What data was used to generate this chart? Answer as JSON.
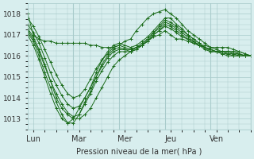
{
  "bg_color": "#d8eeee",
  "grid_color": "#aacccc",
  "line_color": "#1a6b1a",
  "marker_color": "#1a6b1a",
  "xlabel": "Pression niveau de la mer( hPa )",
  "ylim": [
    1012.5,
    1018.5
  ],
  "yticks": [
    1013,
    1014,
    1015,
    1016,
    1017,
    1018
  ],
  "days": [
    "Lun",
    "Mar",
    "Mer",
    "Jeu",
    "Ven"
  ],
  "series": [
    [
      1018.0,
      1017.0,
      1016.8,
      1016.7,
      1016.7,
      1016.6,
      1016.6,
      1016.6,
      1016.6,
      1016.6,
      1016.6,
      1016.5,
      1016.5,
      1016.4,
      1016.4,
      1016.4,
      1016.5,
      1016.7,
      1016.8,
      1017.2,
      1017.5,
      1017.8,
      1018.0,
      1018.1,
      1018.2,
      1018.0,
      1017.8,
      1017.5,
      1017.2,
      1017.0,
      1016.8,
      1016.6,
      1016.4,
      1016.3,
      1016.2,
      1016.2,
      1016.2,
      1016.1,
      1016.0,
      1016.0
    ],
    [
      1017.2,
      1016.8,
      1016.2,
      1015.5,
      1014.8,
      1014.0,
      1013.5,
      1013.2,
      1013.0,
      1013.0,
      1013.2,
      1013.5,
      1014.0,
      1014.5,
      1015.0,
      1015.5,
      1015.8,
      1016.0,
      1016.2,
      1016.4,
      1016.5,
      1016.7,
      1016.9,
      1017.0,
      1017.2,
      1017.0,
      1016.8,
      1016.8,
      1016.7,
      1016.6,
      1016.5,
      1016.5,
      1016.4,
      1016.4,
      1016.4,
      1016.4,
      1016.3,
      1016.2,
      1016.1,
      1016.0
    ],
    [
      1017.0,
      1016.5,
      1015.8,
      1015.0,
      1014.2,
      1013.5,
      1013.0,
      1012.8,
      1013.0,
      1013.5,
      1014.0,
      1014.5,
      1015.2,
      1015.8,
      1016.2,
      1016.5,
      1016.6,
      1016.5,
      1016.4,
      1016.5,
      1016.7,
      1016.9,
      1017.2,
      1017.5,
      1017.8,
      1017.8,
      1017.5,
      1017.3,
      1017.0,
      1016.8,
      1016.6,
      1016.4,
      1016.3,
      1016.2,
      1016.2,
      1016.2,
      1016.2,
      1016.2,
      1016.1,
      1016.0
    ],
    [
      1017.1,
      1016.7,
      1016.0,
      1015.2,
      1014.5,
      1013.8,
      1013.2,
      1012.8,
      1012.8,
      1013.2,
      1013.8,
      1014.3,
      1015.0,
      1015.6,
      1016.0,
      1016.3,
      1016.4,
      1016.3,
      1016.3,
      1016.4,
      1016.6,
      1016.8,
      1017.1,
      1017.4,
      1017.7,
      1017.6,
      1017.4,
      1017.2,
      1017.0,
      1016.8,
      1016.6,
      1016.4,
      1016.3,
      1016.2,
      1016.2,
      1016.2,
      1016.1,
      1016.1,
      1016.0,
      1016.0
    ],
    [
      1017.3,
      1016.9,
      1016.3,
      1015.6,
      1014.8,
      1014.2,
      1013.7,
      1013.3,
      1013.1,
      1013.2,
      1013.7,
      1014.2,
      1014.8,
      1015.3,
      1015.7,
      1016.0,
      1016.2,
      1016.2,
      1016.2,
      1016.3,
      1016.5,
      1016.8,
      1017.1,
      1017.3,
      1017.6,
      1017.5,
      1017.3,
      1017.1,
      1016.9,
      1016.7,
      1016.5,
      1016.4,
      1016.3,
      1016.2,
      1016.2,
      1016.1,
      1016.1,
      1016.0,
      1016.0,
      1016.0
    ],
    [
      1017.5,
      1017.1,
      1016.6,
      1015.9,
      1015.2,
      1014.6,
      1014.1,
      1013.7,
      1013.5,
      1013.6,
      1014.0,
      1014.5,
      1015.0,
      1015.5,
      1015.9,
      1016.2,
      1016.3,
      1016.3,
      1016.2,
      1016.3,
      1016.5,
      1016.7,
      1017.0,
      1017.2,
      1017.5,
      1017.4,
      1017.2,
      1017.0,
      1016.8,
      1016.7,
      1016.5,
      1016.4,
      1016.2,
      1016.2,
      1016.1,
      1016.1,
      1016.0,
      1016.0,
      1016.0,
      1016.0
    ],
    [
      1017.8,
      1017.4,
      1016.9,
      1016.3,
      1015.7,
      1015.1,
      1014.6,
      1014.2,
      1014.0,
      1014.1,
      1014.4,
      1014.9,
      1015.4,
      1015.8,
      1016.1,
      1016.4,
      1016.5,
      1016.4,
      1016.3,
      1016.4,
      1016.5,
      1016.7,
      1017.0,
      1017.2,
      1017.4,
      1017.3,
      1017.1,
      1016.9,
      1016.8,
      1016.6,
      1016.5,
      1016.3,
      1016.2,
      1016.2,
      1016.1,
      1016.0,
      1016.0,
      1016.0,
      1016.0,
      1016.0
    ]
  ]
}
